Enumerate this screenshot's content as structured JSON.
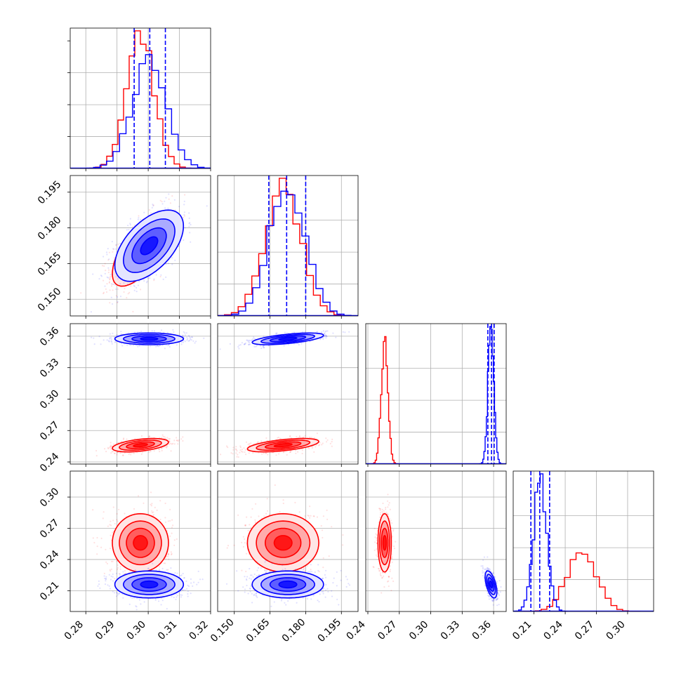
{
  "colors": {
    "red": "#ff0000",
    "blue": "#0000ff",
    "grid": "#b0b0b0",
    "axis": "#000000"
  },
  "chart_data": {
    "type": "corner",
    "grid": true,
    "parameters": [
      {
        "range": [
          0.275,
          0.32
        ],
        "ticks": [
          0.28,
          0.29,
          0.3,
          0.31,
          0.32
        ],
        "labels": [
          "0.28",
          "0.29",
          "0.30",
          "0.31",
          "0.32"
        ]
      },
      {
        "range": [
          0.143,
          0.202
        ],
        "ticks": [
          0.15,
          0.165,
          0.18,
          0.195
        ],
        "labels": [
          "0.150",
          "0.165",
          "0.180",
          "0.195"
        ]
      },
      {
        "range": [
          0.238,
          0.372
        ],
        "ticks": [
          0.24,
          0.27,
          0.3,
          0.33,
          0.36
        ],
        "labels": [
          "0.24",
          "0.27",
          "0.30",
          "0.33",
          "0.36"
        ]
      },
      {
        "range": [
          0.19,
          0.325
        ],
        "ticks": [
          0.21,
          0.24,
          0.27,
          0.3
        ],
        "labels": [
          "0.21",
          "0.24",
          "0.27",
          "0.30"
        ]
      }
    ],
    "series": [
      {
        "color": "red",
        "mean": [
          0.2975,
          0.1705,
          0.256,
          0.256
        ],
        "sigma": [
          0.0045,
          0.0075,
          0.0032,
          0.014
        ],
        "correlations": [
          [
            0,
            1,
            0.65
          ],
          [
            0,
            2,
            0.45
          ],
          [
            1,
            2,
            0.55
          ]
        ]
      },
      {
        "color": "blue",
        "mean": [
          0.3003,
          0.1725,
          0.3575,
          0.216
        ],
        "sigma": [
          0.0055,
          0.0075,
          0.0028,
          0.0065
        ],
        "correlations": [
          [
            0,
            1,
            0.55
          ],
          [
            1,
            2,
            0.6
          ],
          [
            2,
            3,
            -0.55
          ]
        ]
      }
    ],
    "quantile_lines": [
      [
        0.2955,
        0.3005,
        0.3055
      ],
      [
        0.1645,
        0.172,
        0.18
      ],
      [
        0.3545,
        0.358,
        0.3605
      ],
      [
        0.207,
        0.2155,
        0.225
      ]
    ]
  }
}
